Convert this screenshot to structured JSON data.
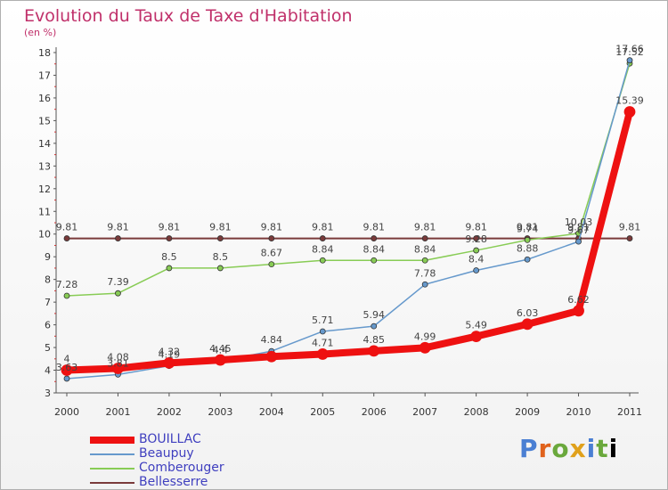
{
  "title": "Evolution du Taux de Taxe d'Habitation",
  "subtitle": "(en %)",
  "logo": "Proxiti",
  "chart_data": {
    "type": "line",
    "ylim": [
      3,
      18
    ],
    "yticks": [
      "3",
      "4",
      "5",
      "6",
      "7",
      "8",
      "9",
      "10",
      "11",
      "12",
      "13",
      "14",
      "15",
      "16",
      "17",
      "18"
    ],
    "x": [
      "2000",
      "2001",
      "2002",
      "2003",
      "2004",
      "2005",
      "2006",
      "2007",
      "2008",
      "2009",
      "2010",
      "2011"
    ],
    "grid": false,
    "legend_position": "bottom-left",
    "series": [
      {
        "name": "Bellesserre",
        "color": "#7a3a3a",
        "width": 2,
        "values": [
          9.81,
          9.81,
          9.81,
          9.81,
          9.81,
          9.81,
          9.81,
          9.81,
          9.81,
          9.81,
          9.81,
          9.81
        ],
        "labels": [
          "9.81",
          "9.81",
          "9.81",
          "9.81",
          "9.81",
          "9.81",
          "9.81",
          "9.81",
          "9.81",
          "9.81",
          "9.81",
          "9.81"
        ]
      },
      {
        "name": "Comberouger",
        "color": "#88cc55",
        "width": 1.5,
        "values": [
          7.28,
          7.39,
          8.5,
          8.5,
          8.67,
          8.84,
          8.84,
          8.84,
          9.28,
          9.74,
          10.03,
          17.52
        ],
        "labels": [
          "7.28",
          "7.39",
          "8.5",
          "8.5",
          "8.67",
          "8.84",
          "8.84",
          "8.84",
          "9.28",
          "9.74",
          "10.03",
          "17.52"
        ]
      },
      {
        "name": "Beaupuy",
        "color": "#6699cc",
        "width": 1.5,
        "values": [
          3.63,
          3.81,
          4.19,
          4.4,
          4.84,
          5.71,
          5.94,
          7.78,
          8.4,
          8.88,
          9.67,
          17.66
        ],
        "labels": [
          "3.63",
          "3.81",
          "4.19",
          "4.4",
          "4.84",
          "5.71",
          "5.94",
          "7.78",
          "8.4",
          "8.88",
          "9.67",
          "17.66"
        ]
      },
      {
        "name": "BOUILLAC",
        "color": "#ee1111",
        "width": 8,
        "values": [
          4,
          4.08,
          4.32,
          4.45,
          4.6,
          4.71,
          4.85,
          4.99,
          5.49,
          6.03,
          6.62,
          15.39
        ],
        "labels": [
          "4",
          "4.08",
          "4.32",
          "4.45",
          "",
          "4.71",
          "4.85",
          "4.99",
          "5.49",
          "6.03",
          "6.62",
          "15.39"
        ]
      }
    ],
    "legend": [
      {
        "name": "BOUILLAC",
        "color": "#ee1111",
        "width": 8
      },
      {
        "name": "Beaupuy",
        "color": "#6699cc",
        "width": 2
      },
      {
        "name": "Comberouger",
        "color": "#88cc55",
        "width": 2
      },
      {
        "name": "Bellesserre",
        "color": "#7a3a3a",
        "width": 2
      }
    ]
  }
}
